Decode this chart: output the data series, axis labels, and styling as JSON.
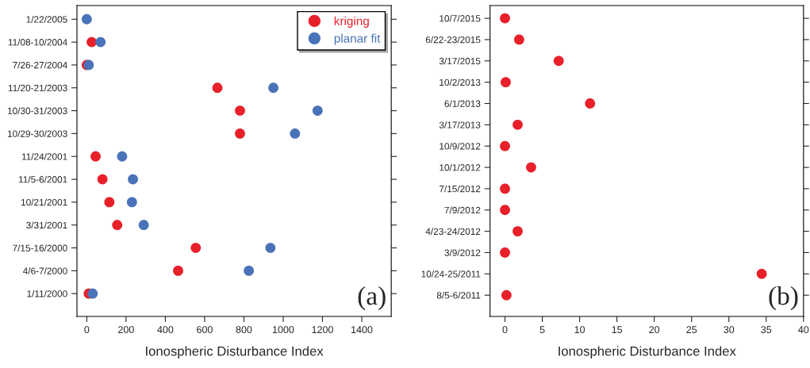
{
  "chart_data": [
    {
      "type": "scatter",
      "orientation": "horizontal",
      "xlabel": "Ionospheric Disturbance Index",
      "legend": "top right",
      "marker": "circle",
      "categories": [
        "1/22/2005",
        "11/08-10/2004",
        "7/26-27/2004",
        "11/20-21/2003",
        "10/30-31/2003",
        "10/29-30/2003",
        "11/24/2001",
        "11/5-6/2001",
        "10/21/2001",
        "3/31/2001",
        "7/15-16/2000",
        "4/6-7/2000",
        "1/11/2000"
      ],
      "series": [
        {
          "name": "kriging",
          "color": "#e8202a",
          "values": [
            null,
            25,
            0,
            665,
            780,
            780,
            45,
            80,
            115,
            155,
            555,
            465,
            10
          ]
        },
        {
          "name": "planar fit",
          "color": "#4a72b8",
          "values": [
            0,
            70,
            10,
            950,
            1175,
            1060,
            180,
            235,
            230,
            290,
            935,
            825,
            30
          ]
        }
      ],
      "xlim": [
        -50,
        1550
      ],
      "xticks": [
        0,
        200,
        400,
        600,
        800,
        1000,
        1200,
        1400
      ],
      "annotations": [
        "(a)"
      ]
    },
    {
      "type": "scatter",
      "orientation": "horizontal",
      "xlabel": "Ionospheric Disturbance Index",
      "marker": "circle",
      "categories": [
        "10/7/2015",
        "6/22-23/2015",
        "3/17/2015",
        "10/2/2013",
        "6/1/2013",
        "3/17/2013",
        "10/9/2012",
        "10/1/2012",
        "7/15/2012",
        "7/9/2012",
        "4/23-24/2012",
        "3/9/2012",
        "10/24-25/2011",
        "8/5-6/2011"
      ],
      "series": [
        {
          "color": "#e8202a",
          "values": [
            0,
            1.9,
            7.2,
            0.1,
            11.4,
            1.7,
            0,
            3.5,
            0,
            0,
            1.7,
            0,
            34.4,
            0.2
          ]
        }
      ],
      "xlim": [
        -2,
        40
      ],
      "xticks": [
        0,
        5,
        10,
        15,
        20,
        25,
        30,
        35,
        40
      ],
      "annotations": [
        "(b)"
      ]
    }
  ]
}
